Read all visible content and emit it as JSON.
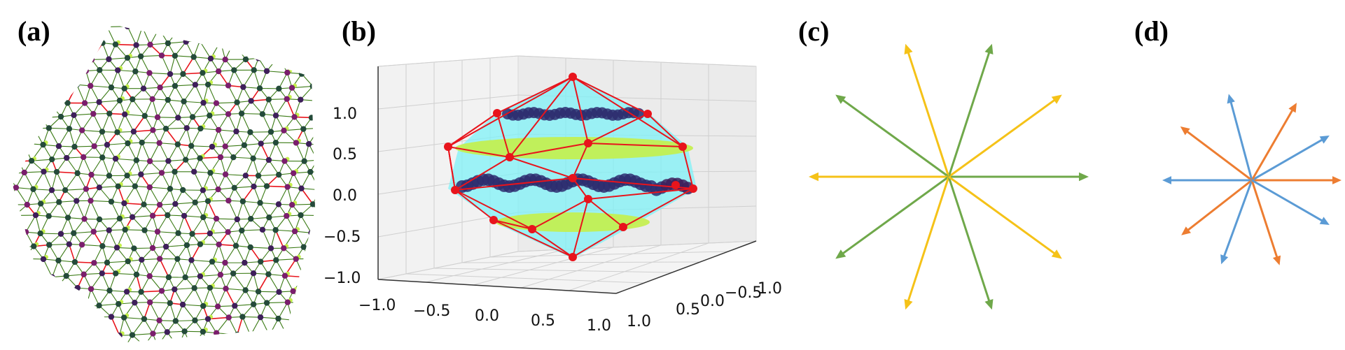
{
  "figure": {
    "panels": [
      {
        "id": "a",
        "label": "(a)",
        "kind": "quasicrystal-tiling"
      },
      {
        "id": "b",
        "label": "(b)",
        "kind": "3d-polyhedron-projection"
      },
      {
        "id": "c",
        "label": "(c)",
        "kind": "star-vectors"
      },
      {
        "id": "d",
        "label": "(d)",
        "kind": "star-vectors"
      }
    ]
  },
  "panel_b": {
    "z_ticks": [
      "1.0",
      "0.5",
      "0.0",
      "−0.5",
      "−1.0"
    ],
    "x_ticks": [
      "−1.0",
      "−0.5",
      "0.0",
      "0.5",
      "1.0"
    ],
    "y_ticks": [
      "1.0",
      "0.5",
      "0.0",
      "−0.5",
      "1.0"
    ]
  },
  "colors": {
    "yellow": "#f5c218",
    "green": "#6fa84a",
    "blue": "#5b9bd5",
    "orange": "#ed7d31",
    "red": "#e8141c",
    "cyan": "#7ff2f7",
    "lime": "#c4f04a",
    "navy": "#2d2b6e",
    "purple": "#3e1f5a"
  },
  "panel_c": {
    "vectors": [
      {
        "angle": 0,
        "color": "green"
      },
      {
        "angle": 36,
        "color": "yellow"
      },
      {
        "angle": 72,
        "color": "green"
      },
      {
        "angle": 108,
        "color": "yellow"
      },
      {
        "angle": 144,
        "color": "green"
      },
      {
        "angle": 180,
        "color": "yellow"
      },
      {
        "angle": 216,
        "color": "green"
      },
      {
        "angle": 252,
        "color": "yellow"
      },
      {
        "angle": 288,
        "color": "green"
      },
      {
        "angle": 324,
        "color": "yellow"
      }
    ]
  },
  "panel_d": {
    "vectors": [
      {
        "angle": 0,
        "color": "orange"
      },
      {
        "angle": 30,
        "color": "blue"
      },
      {
        "angle": 60,
        "color": "orange"
      },
      {
        "angle": 105,
        "color": "blue"
      },
      {
        "angle": 143,
        "color": "orange"
      },
      {
        "angle": 180,
        "color": "blue"
      },
      {
        "angle": 218,
        "color": "orange"
      },
      {
        "angle": 250,
        "color": "blue"
      },
      {
        "angle": 288,
        "color": "orange"
      },
      {
        "angle": 330,
        "color": "blue"
      }
    ]
  }
}
